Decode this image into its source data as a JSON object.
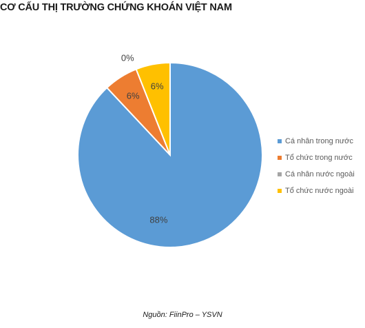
{
  "title": "CƠ CẤU THỊ TRƯỜNG CHỨNG KHOÁN VIỆT NAM",
  "source": "Nguồn: FiinPro – YSVN",
  "chart_data": {
    "type": "pie",
    "title": "CƠ CẤU THỊ TRƯỜNG CHỨNG KHOÁN VIỆT NAM",
    "legend_position": "right",
    "slices": [
      {
        "name": "Cá nhân trong nước",
        "value": 88,
        "label": "88%",
        "color": "#5B9BD5"
      },
      {
        "name": "Tổ chức trong nước",
        "value": 6,
        "label": "6%",
        "color": "#ED7D31"
      },
      {
        "name": "Cá nhân nước ngoài",
        "value": 0,
        "label": "0%",
        "color": "#A5A5A5"
      },
      {
        "name": "Tổ chức nước ngoài",
        "value": 6,
        "label": "6%",
        "color": "#FFC000"
      }
    ]
  }
}
